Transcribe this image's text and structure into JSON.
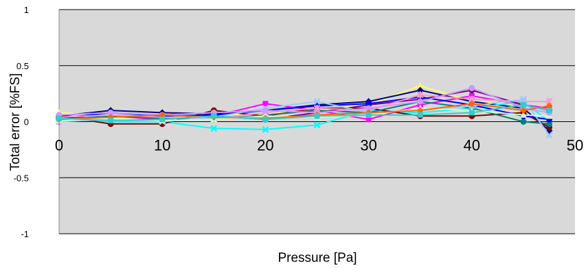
{
  "chart_data": {
    "type": "line",
    "title": "",
    "xlabel": "Pressure [Pa]",
    "ylabel": "Total error [%FS]",
    "xlim": [
      0,
      50
    ],
    "ylim": [
      -1,
      1
    ],
    "x_ticks": [
      0,
      10,
      20,
      30,
      40,
      50
    ],
    "y_ticks": [
      1,
      0.5,
      0,
      -0.5,
      -1
    ],
    "y_tick_labels": [
      "1",
      "0.5",
      "0",
      "-0.5",
      "-1"
    ],
    "grid": "horizontal",
    "plot_background": "#d9d9d9",
    "x": [
      0,
      5,
      10,
      15,
      20,
      25,
      30,
      35,
      40,
      45,
      47.5
    ],
    "series": [
      {
        "color": "#ffff66",
        "marker": "triangle",
        "values": [
          0.08,
          0.05,
          0.05,
          0.06,
          0.07,
          0.1,
          0.15,
          0.32,
          0.18,
          0.15,
          0.12
        ]
      },
      {
        "color": "#000080",
        "marker": "diamond",
        "values": [
          0.05,
          0.1,
          0.08,
          0.07,
          0.1,
          0.15,
          0.18,
          0.28,
          0.18,
          0.12,
          -0.08
        ]
      },
      {
        "color": "#ff00ff",
        "marker": "square",
        "values": [
          0.0,
          0.05,
          0.02,
          0.05,
          0.16,
          0.1,
          0.02,
          0.15,
          0.23,
          0.15,
          0.12
        ]
      },
      {
        "color": "#00ffff",
        "marker": "x",
        "values": [
          0.02,
          0.0,
          0.0,
          -0.06,
          -0.07,
          -0.03,
          0.1,
          0.08,
          0.12,
          0.18,
          0.0
        ]
      },
      {
        "color": "#800080",
        "marker": "circle",
        "values": [
          0.05,
          0.02,
          0.02,
          0.05,
          0.02,
          0.08,
          0.15,
          0.2,
          0.28,
          0.15,
          0.1
        ]
      },
      {
        "color": "#800000",
        "marker": "circle",
        "values": [
          0.05,
          -0.02,
          -0.02,
          0.1,
          0.05,
          0.12,
          0.12,
          0.05,
          0.05,
          0.08,
          -0.05
        ]
      },
      {
        "color": "#008080",
        "marker": "circle",
        "values": [
          0.02,
          0.05,
          0.03,
          0.02,
          0.06,
          0.1,
          0.08,
          0.18,
          0.12,
          0.0,
          -0.02
        ]
      },
      {
        "color": "#0000ff",
        "marker": "circle",
        "values": [
          0.03,
          0.08,
          0.05,
          0.06,
          0.1,
          0.14,
          0.16,
          0.22,
          0.15,
          0.05,
          0.02
        ]
      },
      {
        "color": "#ff99cc",
        "marker": "asterisk",
        "values": [
          0.04,
          0.06,
          0.04,
          0.03,
          0.08,
          0.12,
          0.1,
          0.24,
          0.2,
          0.18,
          0.18
        ]
      },
      {
        "color": "#99ccff",
        "marker": "x",
        "values": [
          0.0,
          0.02,
          0.0,
          0.04,
          0.12,
          0.18,
          0.08,
          0.1,
          0.14,
          0.2,
          -0.12
        ]
      },
      {
        "color": "#ccffcc",
        "marker": "triangle",
        "values": [
          0.01,
          0.03,
          0.01,
          0.02,
          0.05,
          0.04,
          0.06,
          0.12,
          0.1,
          0.06,
          0.05
        ]
      },
      {
        "color": "#cc99ff",
        "marker": "circle",
        "values": [
          0.06,
          0.08,
          0.06,
          0.08,
          0.1,
          0.08,
          0.12,
          0.18,
          0.3,
          0.12,
          0.08
        ]
      },
      {
        "color": "#ff6600",
        "marker": "diamond",
        "values": [
          0.02,
          0.04,
          0.06,
          0.04,
          0.03,
          0.06,
          0.08,
          0.1,
          0.16,
          0.1,
          0.14
        ]
      },
      {
        "color": "#33cccc",
        "marker": "square",
        "values": [
          0.03,
          0.01,
          0.02,
          0.05,
          0.02,
          0.05,
          0.06,
          0.06,
          0.08,
          0.15,
          0.1
        ]
      }
    ]
  }
}
